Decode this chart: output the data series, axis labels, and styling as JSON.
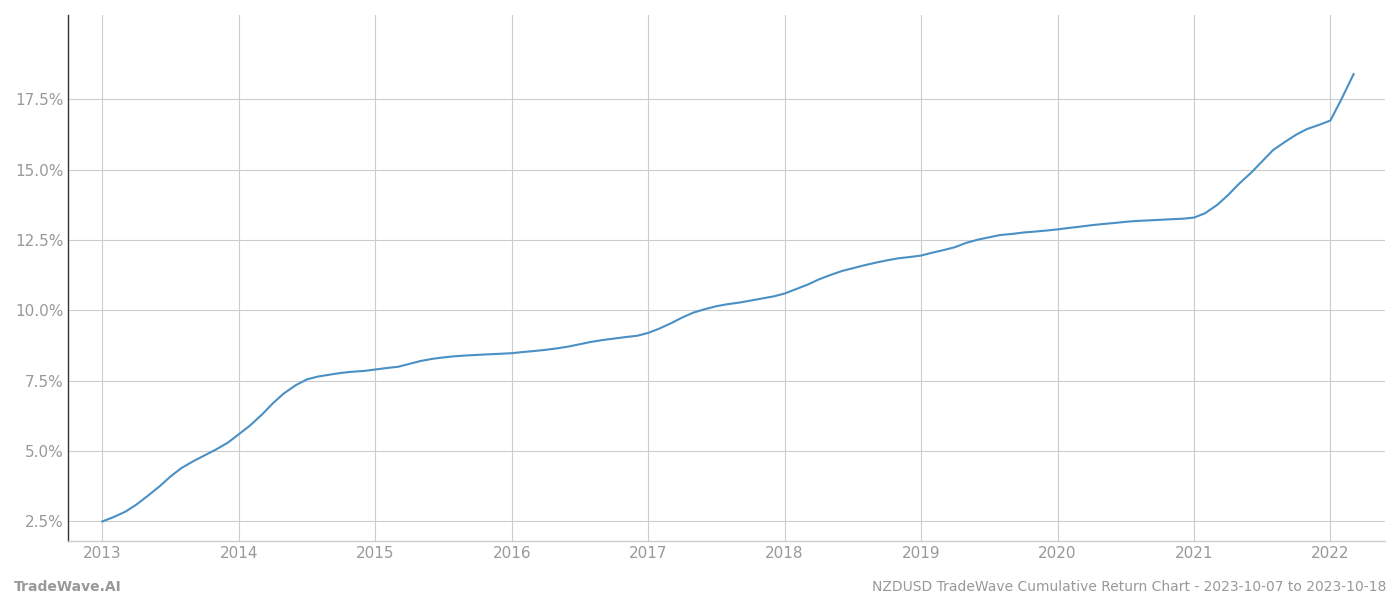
{
  "title": "NZDUSD TradeWave Cumulative Return Chart - 2023-10-07 to 2023-10-18",
  "footer_left": "TradeWave.AI",
  "footer_right": "NZDUSD TradeWave Cumulative Return Chart - 2023-10-07 to 2023-10-18",
  "line_color": "#4a90c4",
  "background_color": "#ffffff",
  "grid_color": "#cccccc",
  "x_values": [
    2013.0,
    2013.08,
    2013.17,
    2013.25,
    2013.33,
    2013.42,
    2013.5,
    2013.58,
    2013.67,
    2013.75,
    2013.83,
    2013.92,
    2014.0,
    2014.08,
    2014.17,
    2014.25,
    2014.33,
    2014.42,
    2014.5,
    2014.58,
    2014.67,
    2014.75,
    2014.83,
    2014.92,
    2015.0,
    2015.08,
    2015.17,
    2015.25,
    2015.33,
    2015.42,
    2015.5,
    2015.58,
    2015.67,
    2015.75,
    2015.83,
    2015.92,
    2016.0,
    2016.08,
    2016.17,
    2016.25,
    2016.33,
    2016.42,
    2016.5,
    2016.58,
    2016.67,
    2016.75,
    2016.83,
    2016.92,
    2017.0,
    2017.08,
    2017.17,
    2017.25,
    2017.33,
    2017.42,
    2017.5,
    2017.58,
    2017.67,
    2017.75,
    2017.83,
    2017.92,
    2018.0,
    2018.08,
    2018.17,
    2018.25,
    2018.33,
    2018.42,
    2018.5,
    2018.58,
    2018.67,
    2018.75,
    2018.83,
    2018.92,
    2019.0,
    2019.08,
    2019.17,
    2019.25,
    2019.33,
    2019.42,
    2019.5,
    2019.58,
    2019.67,
    2019.75,
    2019.83,
    2019.92,
    2020.0,
    2020.08,
    2020.17,
    2020.25,
    2020.33,
    2020.42,
    2020.5,
    2020.58,
    2020.67,
    2020.75,
    2020.83,
    2020.92,
    2021.0,
    2021.08,
    2021.17,
    2021.25,
    2021.33,
    2021.42,
    2021.5,
    2021.58,
    2021.67,
    2021.75,
    2021.83,
    2021.92,
    2022.0,
    2022.08,
    2022.17
  ],
  "y_values": [
    2.5,
    2.65,
    2.85,
    3.1,
    3.4,
    3.75,
    4.1,
    4.4,
    4.65,
    4.85,
    5.05,
    5.3,
    5.6,
    5.9,
    6.3,
    6.7,
    7.05,
    7.35,
    7.55,
    7.65,
    7.72,
    7.78,
    7.82,
    7.85,
    7.9,
    7.95,
    8.0,
    8.1,
    8.2,
    8.28,
    8.33,
    8.37,
    8.4,
    8.42,
    8.44,
    8.46,
    8.48,
    8.52,
    8.56,
    8.6,
    8.65,
    8.72,
    8.8,
    8.88,
    8.95,
    9.0,
    9.05,
    9.1,
    9.2,
    9.35,
    9.55,
    9.75,
    9.92,
    10.05,
    10.15,
    10.22,
    10.28,
    10.35,
    10.42,
    10.5,
    10.6,
    10.75,
    10.92,
    11.1,
    11.25,
    11.4,
    11.5,
    11.6,
    11.7,
    11.78,
    11.85,
    11.9,
    11.95,
    12.05,
    12.15,
    12.25,
    12.4,
    12.52,
    12.6,
    12.68,
    12.72,
    12.77,
    12.8,
    12.84,
    12.88,
    12.93,
    12.98,
    13.03,
    13.07,
    13.11,
    13.15,
    13.18,
    13.2,
    13.22,
    13.24,
    13.26,
    13.3,
    13.45,
    13.75,
    14.1,
    14.5,
    14.9,
    15.3,
    15.7,
    16.0,
    16.25,
    16.45,
    16.6,
    16.75,
    17.5,
    18.4
  ],
  "x_ticks": [
    2013,
    2014,
    2015,
    2016,
    2017,
    2018,
    2019,
    2020,
    2021,
    2022
  ],
  "y_ticks": [
    2.5,
    5.0,
    7.5,
    10.0,
    12.5,
    15.0,
    17.5
  ],
  "xlim": [
    2012.75,
    2022.4
  ],
  "ylim": [
    1.8,
    20.5
  ],
  "tick_label_color": "#999999",
  "tick_fontsize": 11,
  "footer_fontsize": 10,
  "line_width": 1.5,
  "left_spine_color": "#333333",
  "bottom_spine_color": "#cccccc"
}
